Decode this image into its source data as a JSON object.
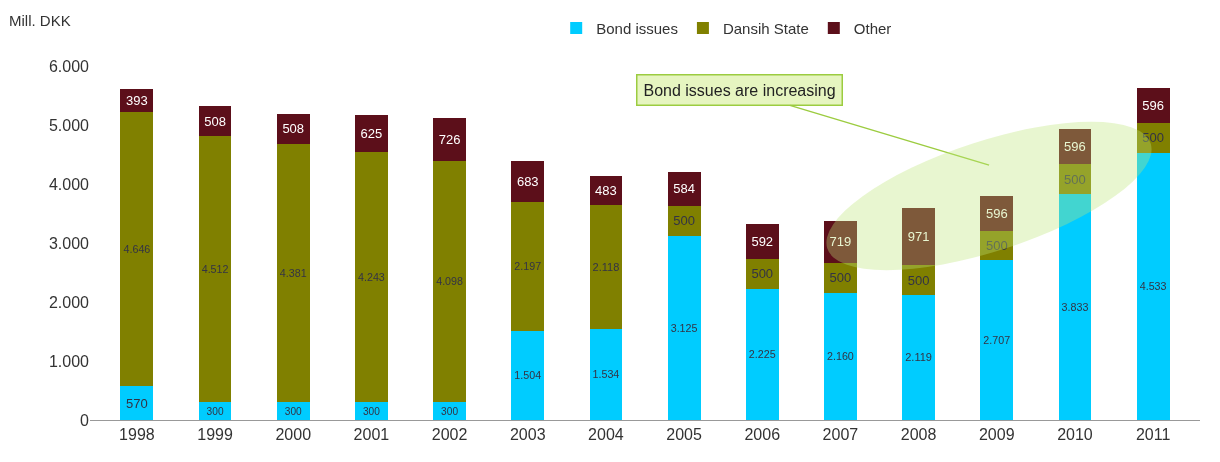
{
  "chart_data": {
    "type": "bar",
    "stacked": true,
    "ylabel": "Mill. DKK",
    "categories": [
      "1998",
      "1999",
      "2000",
      "2001",
      "2002",
      "2003",
      "2004",
      "2005",
      "2006",
      "2007",
      "2008",
      "2009",
      "2010",
      "2011"
    ],
    "series": [
      {
        "name": "Bond issues",
        "color": "#00ccff",
        "values": [
          570,
          300,
          300,
          300,
          300,
          1504,
          1534,
          3125,
          2225,
          2160,
          2119,
          2707,
          3833,
          4533
        ],
        "value_labels": [
          "570",
          "300",
          "300",
          "300",
          "300",
          "1.504",
          "1.534",
          "3.125",
          "2.225",
          "2.160",
          "2.119",
          "2.707",
          "3.833",
          "4.533"
        ]
      },
      {
        "name": "Dansih State",
        "color": "#808000",
        "values": [
          4646,
          4512,
          4381,
          4243,
          4098,
          2197,
          2118,
          500,
          500,
          500,
          500,
          500,
          500,
          500
        ],
        "value_labels": [
          "4.646",
          "4.512",
          "4.381",
          "4.243",
          "4.098",
          "2.197",
          "2.118",
          "500",
          "500",
          "500",
          "500",
          "500",
          "500",
          "500"
        ]
      },
      {
        "name": "Other",
        "color": "#5c0f1a",
        "values": [
          393,
          508,
          508,
          625,
          726,
          683,
          483,
          584,
          592,
          719,
          971,
          596,
          596,
          596
        ],
        "value_labels": [
          "393",
          "508",
          "508",
          "625",
          "726",
          "683",
          "483",
          "584",
          "592",
          "719",
          "971",
          "596",
          "596",
          "596"
        ]
      }
    ],
    "ylim": [
      0,
      6000
    ],
    "yticks": [
      {
        "value": 0,
        "label": "0"
      },
      {
        "value": 1000,
        "label": "1.000"
      },
      {
        "value": 2000,
        "label": "2.000"
      },
      {
        "value": 3000,
        "label": "3.000"
      },
      {
        "value": 4000,
        "label": "4.000"
      },
      {
        "value": 5000,
        "label": "5.000"
      },
      {
        "value": 6000,
        "label": "6.000"
      }
    ],
    "grid": false,
    "legend": "top",
    "annotations": [
      "Bond issues are increasing"
    ]
  }
}
